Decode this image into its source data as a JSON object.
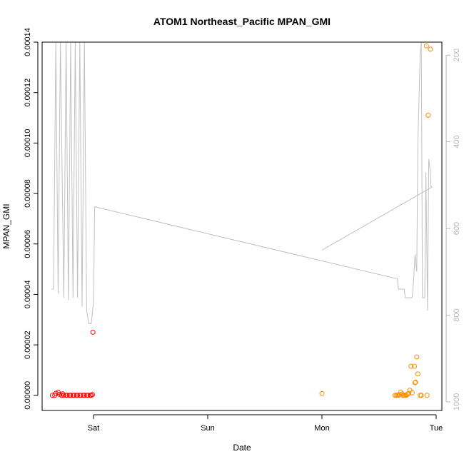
{
  "chart_data": {
    "type": "scatter",
    "title": "ATOM1 Northeast_Pacific MPAN_GMI",
    "xlabel": "Date",
    "ylabel": "MPAN_GMI",
    "x_unit": "days",
    "xlim": [
      -0.45,
      3.05
    ],
    "ylim": [
      -6e-06,
      0.00014
    ],
    "x_ticks": [
      {
        "value": 0,
        "label": "Sat"
      },
      {
        "value": 1,
        "label": "Sun"
      },
      {
        "value": 2,
        "label": "Mon"
      },
      {
        "value": 3,
        "label": "Tue"
      }
    ],
    "y_ticks": [
      {
        "value": 0,
        "label": "0.00000"
      },
      {
        "value": 2e-05,
        "label": "0.00002"
      },
      {
        "value": 4e-05,
        "label": "0.00004"
      },
      {
        "value": 6e-05,
        "label": "0.00006"
      },
      {
        "value": 8e-05,
        "label": "0.00008"
      },
      {
        "value": 0.0001,
        "label": "0.00010"
      },
      {
        "value": 0.00012,
        "label": "0.00012"
      },
      {
        "value": 0.00014,
        "label": "0.00014"
      }
    ],
    "y2_label": "",
    "y2lim": [
      1020,
      170
    ],
    "y2_ticks": [
      {
        "value": 200,
        "label": "200"
      },
      {
        "value": 400,
        "label": "400"
      },
      {
        "value": 600,
        "label": "600"
      },
      {
        "value": 800,
        "label": "800"
      },
      {
        "value": 1000,
        "label": "1000"
      }
    ],
    "series": [
      {
        "marker": "circle-open",
        "color": "#ff0000",
        "points": [
          [
            -0.36,
            0
          ],
          [
            -0.34,
            0
          ],
          [
            -0.33,
            8e-07
          ],
          [
            -0.31,
            1.2e-06
          ],
          [
            -0.3,
            4e-07
          ],
          [
            -0.28,
            0
          ],
          [
            -0.27,
            6e-07
          ],
          [
            -0.26,
            0
          ],
          [
            -0.24,
            0
          ],
          [
            -0.23,
            0
          ],
          [
            -0.21,
            0
          ],
          [
            -0.2,
            0
          ],
          [
            -0.18,
            0
          ],
          [
            -0.17,
            0
          ],
          [
            -0.15,
            0
          ],
          [
            -0.14,
            0
          ],
          [
            -0.12,
            0
          ],
          [
            -0.11,
            0
          ],
          [
            -0.09,
            0
          ],
          [
            -0.08,
            0
          ],
          [
            -0.06,
            0
          ],
          [
            -0.05,
            0
          ],
          [
            -0.03,
            0
          ],
          [
            -0.02,
            0
          ],
          [
            -0.01,
            3e-07
          ],
          [
            -0.005,
            2.5e-05
          ]
        ]
      },
      {
        "marker": "circle-open",
        "color": "#ff8c00",
        "points": [
          [
            2.0,
            7e-07
          ],
          [
            2.64,
            0
          ],
          [
            2.65,
            0
          ],
          [
            2.66,
            0
          ],
          [
            2.67,
            0
          ],
          [
            2.68,
            3e-07
          ],
          [
            2.69,
            1.2e-06
          ],
          [
            2.7,
            5e-07
          ],
          [
            2.71,
            0
          ],
          [
            2.72,
            0
          ],
          [
            2.73,
            0
          ],
          [
            2.74,
            0
          ],
          [
            2.75,
            5e-07
          ],
          [
            2.76,
            8e-07
          ],
          [
            2.77,
            2e-06
          ],
          [
            2.78,
            1.15e-05
          ],
          [
            2.79,
            1e-06
          ],
          [
            2.81,
            1.15e-05
          ],
          [
            2.815,
            5e-06
          ],
          [
            2.82,
            5.2e-06
          ],
          [
            2.83,
            1.52e-05
          ],
          [
            2.84,
            8.5e-06
          ],
          [
            2.86,
            0
          ],
          [
            2.87,
            0
          ],
          [
            2.915,
            0.0001385
          ],
          [
            2.93,
            0.000111
          ],
          [
            2.95,
            0.0001372
          ],
          [
            2.92,
            0
          ]
        ]
      },
      {
        "marker": "line",
        "color": "#c0c0c0",
        "axis": "right",
        "points": [
          [
            -0.37,
            740
          ],
          [
            -0.35,
            740
          ],
          [
            -0.33,
            170
          ],
          [
            -0.31,
            750
          ],
          [
            -0.29,
            170
          ],
          [
            -0.26,
            760
          ],
          [
            -0.24,
            170
          ],
          [
            -0.22,
            765
          ],
          [
            -0.2,
            170
          ],
          [
            -0.18,
            760
          ],
          [
            -0.16,
            170
          ],
          [
            -0.14,
            760
          ],
          [
            -0.12,
            170
          ],
          [
            -0.1,
            780
          ],
          [
            -0.08,
            170
          ],
          [
            -0.06,
            790
          ],
          [
            -0.04,
            820
          ],
          [
            -0.02,
            820
          ],
          [
            0,
            770
          ],
          [
            0.01,
            550
          ],
          [
            2.64,
            715
          ],
          [
            2.66,
            715
          ],
          [
            2.67,
            740
          ],
          [
            2.72,
            740
          ],
          [
            2.73,
            760
          ],
          [
            2.79,
            760
          ],
          [
            2.8,
            730
          ],
          [
            2.815,
            660
          ],
          [
            2.83,
            700
          ],
          [
            2.84,
            400
          ],
          [
            2.85,
            300
          ],
          [
            2.86,
            200
          ],
          [
            2.87,
            170
          ],
          [
            2.88,
            760
          ],
          [
            2.9,
            760
          ],
          [
            2.91,
            470
          ],
          [
            2.925,
            790
          ],
          [
            2.935,
            440
          ],
          [
            2.95,
            470
          ],
          [
            2.955,
            505
          ],
          [
            2.96,
            505
          ],
          [
            2.0,
            650
          ]
        ]
      }
    ]
  }
}
